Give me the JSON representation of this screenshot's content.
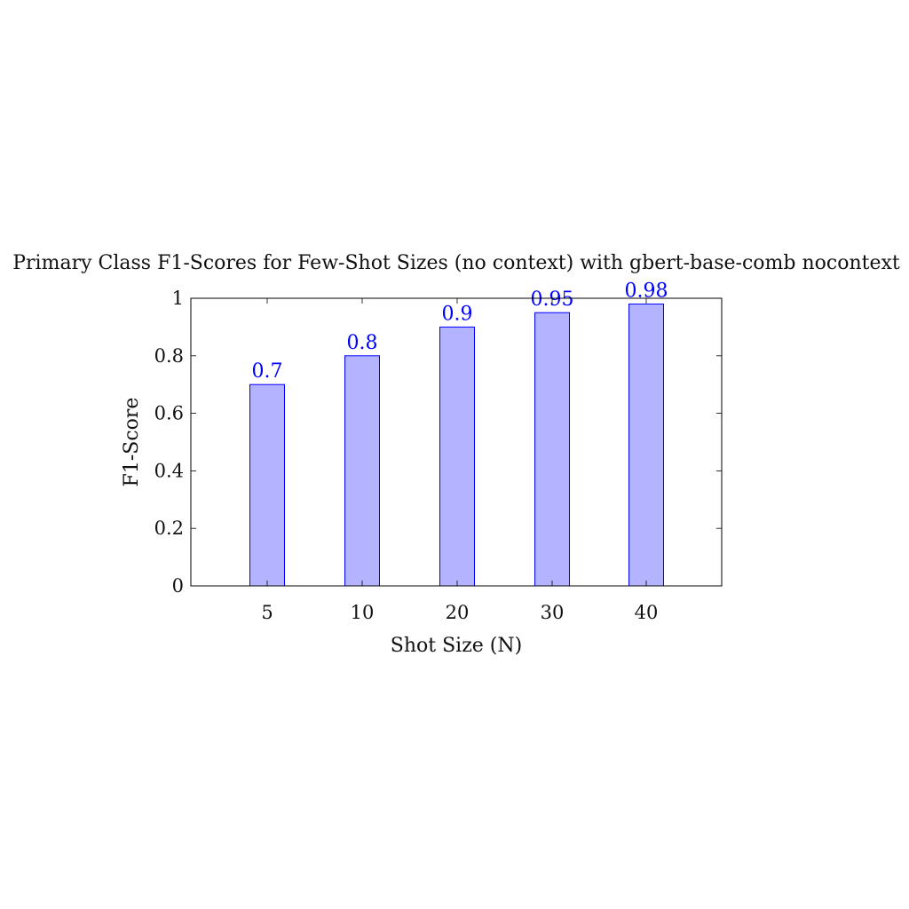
{
  "chart_data": {
    "type": "bar",
    "title": "Primary Class F1-Scores for Few-Shot Sizes (no context) with gbert-base-comb nocontext",
    "xlabel": "Shot Size (N)",
    "ylabel": "F1-Score",
    "categories": [
      "5",
      "10",
      "20",
      "30",
      "40"
    ],
    "values": [
      0.7,
      0.8,
      0.9,
      0.95,
      0.98
    ],
    "data_labels": [
      "0.7",
      "0.8",
      "0.9",
      "0.95",
      "0.98"
    ],
    "ylim": [
      0,
      1
    ],
    "yticks": [
      0,
      0.2,
      0.4,
      0.6,
      0.8,
      1
    ],
    "ytick_labels": [
      "0",
      "0.2",
      "0.4",
      "0.6",
      "0.8",
      "1"
    ],
    "grid": false,
    "legend": "none",
    "colors": {
      "bar_fill": "#b3b3ff",
      "bar_stroke": "#0000ff",
      "data_label": "#0000ff",
      "axis": "#000000"
    }
  }
}
